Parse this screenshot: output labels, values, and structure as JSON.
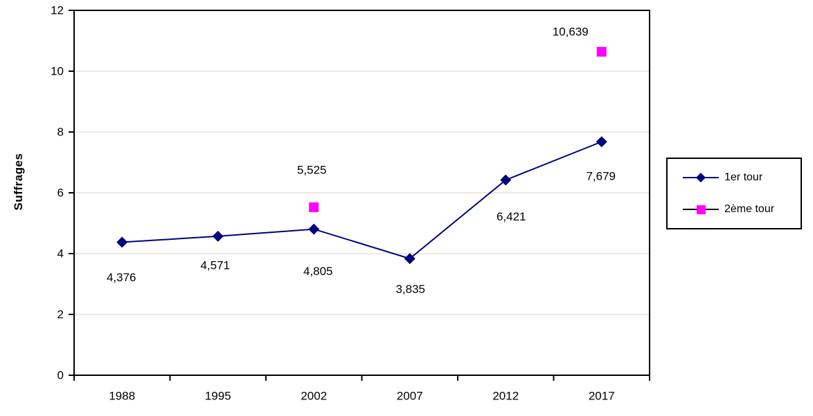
{
  "chart_data": {
    "type": "line",
    "title": "",
    "xlabel": "",
    "ylabel": "Suffrages",
    "ylim": [
      0,
      12
    ],
    "ytick_step": 2,
    "grid": true,
    "legend_position": "right",
    "categories": [
      "1988",
      "1995",
      "2002",
      "2007",
      "2012",
      "2017"
    ],
    "series": [
      {
        "name": "1er tour",
        "marker": "diamond",
        "color": "#000080",
        "line_color": "#000080",
        "values": [
          4.376,
          4.571,
          4.805,
          3.835,
          6.421,
          7.679
        ],
        "labels": [
          "4,376",
          "4,571",
          "4,805",
          "3,835",
          "6,421",
          "7,679"
        ],
        "label_offsets": [
          [
            -1,
            51
          ],
          [
            -4,
            42
          ],
          [
            6,
            61
          ],
          [
            1,
            44
          ],
          [
            8,
            53
          ],
          [
            -1,
            50
          ]
        ]
      },
      {
        "name": "2ème tour",
        "marker": "square",
        "color": "#FF00FF",
        "line_color": null,
        "legend_line_color": "#000000",
        "values": [
          null,
          null,
          5.525,
          null,
          null,
          10.639
        ],
        "labels": [
          null,
          null,
          "5,525",
          null,
          null,
          "10,639"
        ],
        "label_offsets": [
          null,
          null,
          [
            -3,
            -54
          ],
          null,
          null,
          [
            -45,
            -29
          ]
        ]
      }
    ],
    "colors": {
      "grid": "#EDE9E3",
      "axis": "#000000",
      "text": "#000000",
      "background": "#FFFFFF"
    }
  }
}
